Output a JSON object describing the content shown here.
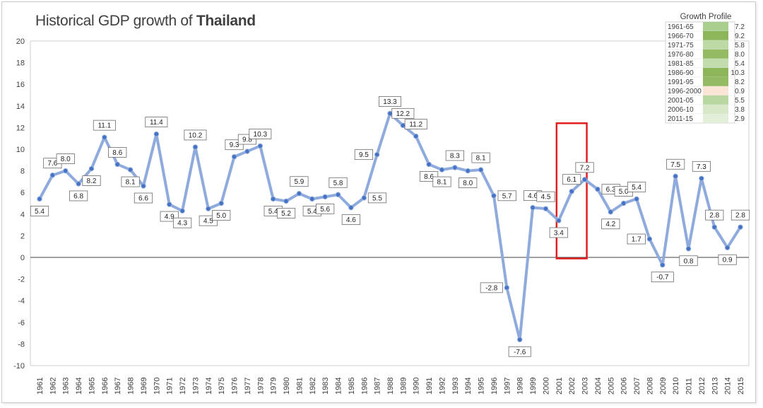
{
  "title": {
    "prefix": "Historical GDP growth of",
    "country": "Thailand"
  },
  "colors": {
    "line": "#8faadc",
    "marker": "#4472c4",
    "highlight": "#e02020",
    "profile_light": "#d9ead3",
    "profile_mid": "#a9cf8f",
    "profile_dark": "#8db65a",
    "profile_low": "#fbe5d6"
  },
  "chart_data": {
    "type": "line",
    "title": "Historical GDP growth of Thailand",
    "xlabel": "",
    "ylabel": "",
    "ylim": [
      -10,
      20
    ],
    "yticks": [
      -10,
      -8,
      -6,
      -4,
      -2,
      0,
      2,
      4,
      6,
      8,
      10,
      12,
      14,
      16,
      18,
      20
    ],
    "grid": false,
    "x": [
      "1961",
      "1962",
      "1963",
      "1964",
      "1965",
      "1966",
      "1967",
      "1968",
      "1969",
      "1970",
      "1971",
      "1972",
      "1973",
      "1974",
      "1975",
      "1976",
      "1977",
      "1978",
      "1979",
      "1980",
      "1981",
      "1982",
      "1983",
      "1984",
      "1985",
      "1986",
      "1987",
      "1988",
      "1989",
      "1990",
      "1991",
      "1992",
      "1993",
      "1994",
      "1995",
      "1996",
      "1997",
      "1998",
      "1999",
      "2000",
      "2001",
      "2002",
      "2003",
      "2004",
      "2005",
      "2006",
      "2007",
      "2008",
      "2009",
      "2010",
      "2011",
      "2012",
      "2013",
      "2014",
      "2015"
    ],
    "values": [
      5.4,
      7.6,
      8.0,
      6.8,
      8.2,
      11.1,
      8.6,
      8.1,
      6.6,
      11.4,
      4.9,
      4.3,
      10.2,
      4.5,
      5.0,
      9.3,
      9.8,
      10.3,
      5.4,
      5.2,
      5.9,
      5.4,
      5.6,
      5.8,
      4.6,
      5.5,
      9.5,
      13.3,
      12.2,
      11.2,
      8.6,
      8.1,
      8.3,
      8.0,
      8.1,
      5.7,
      -2.8,
      -7.6,
      4.6,
      4.5,
      3.4,
      6.1,
      7.2,
      6.3,
      4.2,
      5.0,
      5.4,
      1.7,
      -0.7,
      7.5,
      0.8,
      7.3,
      2.8,
      0.9,
      2.8
    ],
    "labels": [
      "5.4",
      "7.6",
      "8.0",
      "6.8",
      "8.2",
      "11.1",
      "8.6",
      "8.1",
      "6.6",
      "11.4",
      "4.9",
      "4.3",
      "10.2",
      "4.5",
      "5.0",
      "9.3",
      "9.8",
      "10.3",
      "5.4",
      "5.2",
      "5.9",
      "5.4",
      "5.6",
      "5.8",
      "4.6",
      "5.5",
      "9.5",
      "13.3",
      "12.2",
      "11.2",
      "8.6",
      "8.1",
      "8.3",
      "8.0",
      "8.1",
      "5.7",
      "-2.8",
      "-7.6",
      "4.6",
      "4.5",
      "3.4",
      "6.1",
      "7.2",
      "6.3",
      "4.2",
      "5.0",
      "5.4",
      "1.7",
      "-0.7",
      "7.5",
      "0.8",
      "7.3",
      "2.8",
      "0.9",
      "2.8"
    ],
    "label_position": [
      "below",
      "above",
      "above",
      "below",
      "below",
      "above",
      "above",
      "below",
      "below",
      "above",
      "below",
      "below",
      "above",
      "below",
      "below",
      "above",
      "above",
      "above",
      "below",
      "below",
      "above",
      "below",
      "below",
      "above",
      "below",
      "right",
      "left",
      "above",
      "above",
      "above",
      "below",
      "below",
      "above",
      "below",
      "above",
      "right",
      "left",
      "below",
      "above",
      "above",
      "below",
      "above",
      "above",
      "right",
      "below",
      "above",
      "above",
      "left",
      "below",
      "above",
      "below",
      "above",
      "above",
      "below",
      "above"
    ],
    "highlight": {
      "from": "2001",
      "to": "2003"
    },
    "growth_profile": {
      "title": "Growth Profile",
      "rows": [
        {
          "period": "1961-65",
          "value": "7.2",
          "color": "#a9cf8f"
        },
        {
          "period": "1966-70",
          "value": "9.2",
          "color": "#8db65a"
        },
        {
          "period": "1971-75",
          "value": "5.8",
          "color": "#bcd9a6"
        },
        {
          "period": "1976-80",
          "value": "8.0",
          "color": "#94bb63"
        },
        {
          "period": "1981-85",
          "value": "5.4",
          "color": "#c2dcae"
        },
        {
          "period": "1986-90",
          "value": "10.3",
          "color": "#8db65a"
        },
        {
          "period": "1991-95",
          "value": "8.2",
          "color": "#94bb63"
        },
        {
          "period": "1996-2000",
          "value": "0.9",
          "color": "#fbe5d6"
        },
        {
          "period": "2001-05",
          "value": "5.5",
          "color": "#b9d7a1"
        },
        {
          "period": "2006-10",
          "value": "3.8",
          "color": "#d6e8c8"
        },
        {
          "period": "2011-15",
          "value": "2.9",
          "color": "#e3efd9"
        }
      ]
    }
  }
}
